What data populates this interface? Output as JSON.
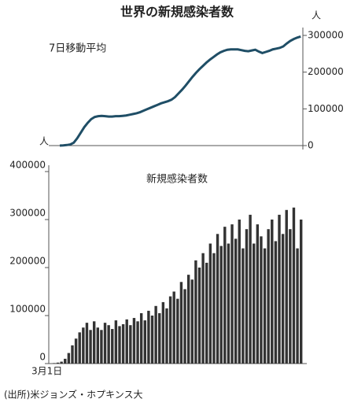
{
  "title": "世界の新規感染者数",
  "source": "(出所)米ジョンズ・ホプキンス大",
  "chart_data": [
    {
      "type": "line",
      "title": "7日移動平均",
      "y_unit": "人",
      "color": "#1f4e66",
      "values": [
        0,
        500,
        1500,
        3000,
        8000,
        20000,
        35000,
        50000,
        62000,
        72000,
        78000,
        80000,
        81000,
        80000,
        79000,
        79000,
        80000,
        80000,
        81000,
        82000,
        84000,
        86000,
        88000,
        91000,
        95000,
        99000,
        103000,
        107000,
        111000,
        115000,
        118000,
        121000,
        125000,
        132000,
        142000,
        152000,
        163000,
        175000,
        187000,
        198000,
        208000,
        217000,
        226000,
        234000,
        241000,
        248000,
        254000,
        258000,
        261000,
        262000,
        262000,
        262000,
        260000,
        258000,
        257000,
        259000,
        261000,
        256000,
        252000,
        255000,
        258000,
        262000,
        264000,
        266000,
        270000,
        278000,
        285000,
        290000,
        294000,
        297000
      ],
      "ylim": [
        0,
        300000
      ],
      "yticks": [
        0,
        100000,
        200000,
        300000
      ]
    },
    {
      "type": "bar",
      "title": "新規感染者数",
      "color": "#333333",
      "categories": [
        "3月1日",
        null,
        null,
        null,
        null,
        null,
        null,
        null,
        null,
        null,
        null,
        null,
        null,
        null,
        null,
        null,
        null,
        null,
        null,
        null,
        null,
        null,
        null,
        null,
        null,
        null,
        null,
        null,
        null,
        null,
        null,
        null,
        null,
        null,
        null,
        null,
        null,
        null,
        null,
        null,
        null,
        null,
        null,
        null,
        null,
        null,
        null,
        null,
        null,
        null,
        null,
        null,
        null,
        null,
        null,
        null,
        null,
        null,
        null,
        null,
        null,
        null,
        null,
        null,
        null,
        null,
        null,
        null,
        null,
        null
      ],
      "values": [
        0,
        1000,
        2000,
        4000,
        10000,
        22000,
        38000,
        52000,
        65000,
        75000,
        85000,
        70000,
        88000,
        75000,
        70000,
        85000,
        80000,
        72000,
        90000,
        78000,
        82000,
        92000,
        80000,
        95000,
        88000,
        105000,
        90000,
        110000,
        100000,
        120000,
        105000,
        128000,
        115000,
        140000,
        150000,
        135000,
        170000,
        155000,
        185000,
        175000,
        215000,
        200000,
        230000,
        210000,
        250000,
        230000,
        270000,
        245000,
        285000,
        250000,
        290000,
        260000,
        300000,
        240000,
        280000,
        310000,
        250000,
        290000,
        265000,
        240000,
        280000,
        300000,
        255000,
        310000,
        270000,
        320000,
        280000,
        325000,
        240000,
        300000
      ],
      "ylim": [
        0,
        400000
      ],
      "yticks": [
        0,
        100000,
        200000,
        300000,
        400000
      ]
    }
  ]
}
